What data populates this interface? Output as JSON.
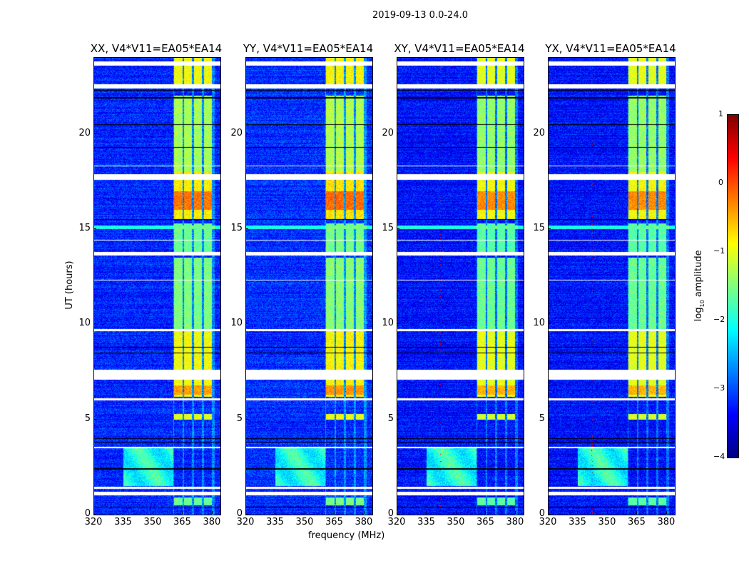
{
  "chart_data": {
    "type": "heatmap",
    "title": "2019-09-13 0.0-24.0",
    "xlabel": "frequency (MHz)",
    "ylabel": "UT (hours)",
    "xlim": [
      320,
      384
    ],
    "ylim": [
      0,
      24
    ],
    "xticks": [
      320,
      335,
      350,
      365,
      380
    ],
    "yticks": [
      0,
      5,
      10,
      15,
      20
    ],
    "panels": [
      {
        "title": "XX, V4*V11=EA05*EA14",
        "offset": 0.0,
        "spike_mhz": null
      },
      {
        "title": "YY, V4*V11=EA05*EA14",
        "offset": 0.05,
        "spike_mhz": null
      },
      {
        "title": "XY, V4*V11=EA05*EA14",
        "offset": -0.1,
        "spike_mhz": 342
      },
      {
        "title": "YX, V4*V11=EA05*EA14",
        "offset": -0.1,
        "spike_mhz": 342
      }
    ],
    "background_level": -3.2,
    "rfi_blocks_mhz": [
      [
        360.5,
        364.8
      ],
      [
        365.5,
        369.5
      ],
      [
        370.6,
        374.5
      ],
      [
        375.6,
        379.6
      ]
    ],
    "rfi_episodes": [
      {
        "hours": [
          0.5,
          0.9
        ],
        "level": -1.6
      },
      {
        "hours": [
          5.0,
          5.3
        ],
        "level": -1.0
      },
      {
        "hours": [
          6.2,
          9.7
        ],
        "level": -0.9
      },
      {
        "hours": [
          6.3,
          6.8
        ],
        "level": -0.4
      },
      {
        "hours": [
          9.7,
          13.5
        ],
        "level": -1.5
      },
      {
        "hours": [
          13.8,
          15.3
        ],
        "level": -1.6
      },
      {
        "hours": [
          15.5,
          18.0
        ],
        "level": -0.8
      },
      {
        "hours": [
          16.0,
          17.0
        ],
        "level": -0.2
      },
      {
        "hours": [
          18.0,
          22.0
        ],
        "level": -1.3
      },
      {
        "hours": [
          22.6,
          24.0
        ],
        "level": -0.9
      }
    ],
    "broadband_feature": {
      "mhz": [
        335,
        360
      ],
      "hours": [
        1.5,
        3.5
      ],
      "level": -2.0
    },
    "band_15h": {
      "hours": [
        15.0,
        15.2
      ],
      "level": -2.0
    },
    "flagged_hours": [
      [
        1.0,
        1.2
      ],
      [
        1.35,
        1.45
      ],
      [
        3.5,
        3.55
      ],
      [
        6.0,
        6.1
      ],
      [
        7.1,
        7.6
      ],
      [
        9.65,
        9.75
      ],
      [
        12.3,
        12.35
      ],
      [
        13.6,
        13.8
      ],
      [
        14.4,
        14.45
      ],
      [
        17.6,
        17.9
      ],
      [
        18.3,
        18.35
      ],
      [
        22.4,
        22.6
      ],
      [
        23.6,
        23.8
      ]
    ],
    "dark_lines_hours": [
      0.4,
      2.4,
      3.8,
      4.0,
      8.5,
      8.8,
      15.5,
      19.3,
      20.5,
      21.9,
      22.3
    ],
    "colorbar": {
      "label_prefix": "log",
      "label_sub": "10",
      "label_suffix": " amplitude",
      "range": [
        -4,
        1
      ],
      "ticks": [
        "1",
        "0",
        "−1",
        "−2",
        "−3",
        "−4"
      ],
      "colormap": "jet"
    }
  }
}
